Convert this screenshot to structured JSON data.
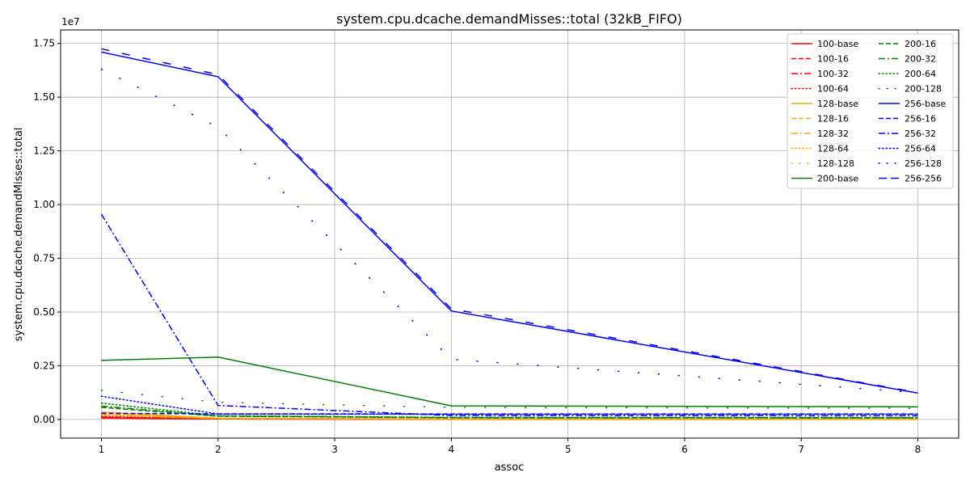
{
  "chart_data": {
    "type": "line",
    "title": "system.cpu.dcache.demandMisses::total (32kB_FIFO)",
    "xlabel": "assoc",
    "ylabel": "system.cpu.dcache.demandMisses::total",
    "y_offset_text": "1e7",
    "x_ticks": [
      1,
      2,
      3,
      4,
      5,
      6,
      7,
      8
    ],
    "x_tick_labels": [
      "1",
      "2",
      "3",
      "4",
      "5",
      "6",
      "7",
      "8"
    ],
    "y_ticks": [
      0,
      2500000,
      5000000,
      7500000,
      10000000,
      12500000,
      15000000,
      17500000
    ],
    "y_tick_labels": [
      "0.00",
      "0.25",
      "0.50",
      "0.75",
      "1.00",
      "1.25",
      "1.50",
      "1.75"
    ],
    "xlim": [
      0.65,
      8.35
    ],
    "ylim": [
      -870000,
      18130000
    ],
    "grid": true,
    "legend_position": "top-right",
    "x": [
      1,
      2,
      4,
      8
    ],
    "series": [
      {
        "name": "100-base",
        "color": "#ff0000",
        "dash": "solid",
        "values": [
          60000,
          20000,
          8000,
          5000
        ]
      },
      {
        "name": "100-16",
        "color": "#ff0000",
        "dash": "dashed",
        "values": [
          90000,
          25000,
          10000,
          6000
        ]
      },
      {
        "name": "100-32",
        "color": "#ff0000",
        "dash": "dashdot",
        "values": [
          110000,
          30000,
          12000,
          7000
        ]
      },
      {
        "name": "100-64",
        "color": "#ff0000",
        "dash": "dotted",
        "values": [
          140000,
          35000,
          15000,
          8000
        ]
      },
      {
        "name": "128-base",
        "color": "#ffa500",
        "dash": "solid",
        "values": [
          350000,
          50000,
          20000,
          15000
        ]
      },
      {
        "name": "128-16",
        "color": "#ffa500",
        "dash": "dashed",
        "values": [
          300000,
          45000,
          18000,
          12000
        ]
      },
      {
        "name": "128-32",
        "color": "#ffa500",
        "dash": "dashdot",
        "values": [
          250000,
          40000,
          16000,
          10000
        ]
      },
      {
        "name": "128-64",
        "color": "#ffa500",
        "dash": "dotted",
        "values": [
          200000,
          35000,
          14000,
          9000
        ]
      },
      {
        "name": "128-128",
        "color": "#ffa500",
        "dash": "loose",
        "values": [
          180000,
          30000,
          12000,
          8000
        ]
      },
      {
        "name": "200-base",
        "color": "#008000",
        "dash": "solid",
        "values": [
          2750000,
          2900000,
          630000,
          590000
        ]
      },
      {
        "name": "200-16",
        "color": "#008000",
        "dash": "dashed",
        "values": [
          560000,
          150000,
          80000,
          70000
        ]
      },
      {
        "name": "200-32",
        "color": "#008000",
        "dash": "dashdot",
        "values": [
          620000,
          160000,
          90000,
          80000
        ]
      },
      {
        "name": "200-64",
        "color": "#008000",
        "dash": "dotted",
        "values": [
          760000,
          170000,
          95000,
          85000
        ]
      },
      {
        "name": "200-128",
        "color": "#008000",
        "dash": "loose",
        "values": [
          1350000,
          800000,
          560000,
          520000
        ]
      },
      {
        "name": "256-base",
        "color": "#0000ff",
        "dash": "solid",
        "values": [
          17100000,
          15950000,
          5050000,
          1230000
        ]
      },
      {
        "name": "256-16",
        "color": "#0000ff",
        "dash": "dashed",
        "values": [
          280000,
          260000,
          255000,
          255000
        ]
      },
      {
        "name": "256-32",
        "color": "#0000ff",
        "dash": "dashdot",
        "values": [
          9550000,
          650000,
          180000,
          170000
        ]
      },
      {
        "name": "256-64",
        "color": "#0000ff",
        "dash": "dotted",
        "values": [
          1080000,
          250000,
          240000,
          240000
        ]
      },
      {
        "name": "256-128",
        "color": "#0000ff",
        "dash": "loose",
        "values": [
          16300000,
          13600000,
          2800000,
          1250000
        ]
      },
      {
        "name": "256-256",
        "color": "#0000ff",
        "dash": "longdash",
        "values": [
          17250000,
          16050000,
          5150000,
          1250000
        ]
      }
    ]
  }
}
